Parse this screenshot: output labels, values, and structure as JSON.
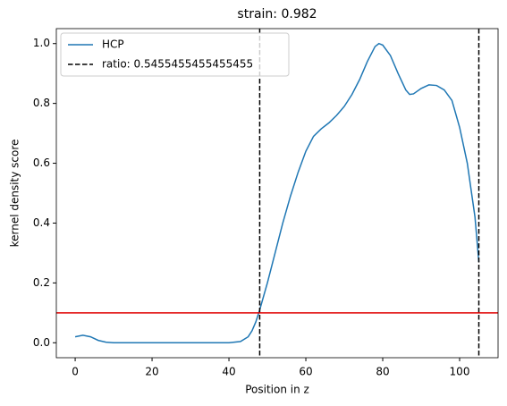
{
  "chart_data": {
    "type": "line",
    "title": "strain: 0.982",
    "xlabel": "Position in z",
    "ylabel": "kernel density score",
    "series": [
      {
        "name": "HCP",
        "color": "#1f77b4",
        "x": [
          0,
          2,
          4,
          6,
          8,
          10,
          20,
          30,
          40,
          43,
          45,
          46,
          47,
          48,
          50,
          52,
          54,
          56,
          58,
          60,
          62,
          64,
          66,
          68,
          70,
          72,
          74,
          76,
          78,
          79,
          80,
          82,
          84,
          86,
          87,
          88,
          90,
          92,
          94,
          96,
          98,
          100,
          102,
          104,
          105
        ],
        "values": [
          0.02,
          0.025,
          0.02,
          0.008,
          0.002,
          0,
          0,
          0,
          0,
          0.004,
          0.02,
          0.04,
          0.07,
          0.11,
          0.2,
          0.3,
          0.4,
          0.49,
          0.57,
          0.64,
          0.69,
          0.715,
          0.735,
          0.76,
          0.79,
          0.83,
          0.88,
          0.94,
          0.99,
          1.0,
          0.995,
          0.96,
          0.9,
          0.845,
          0.83,
          0.832,
          0.85,
          0.862,
          0.86,
          0.845,
          0.81,
          0.72,
          0.6,
          0.42,
          0.27
        ]
      }
    ],
    "vlines": {
      "name": "ratio: 0.5455455455455455",
      "color": "#000000",
      "values": [
        48,
        105
      ]
    },
    "hline": {
      "value": 0.1,
      "color": "#e00000"
    },
    "xlim": [
      -4.9,
      110
    ],
    "ylim": [
      -0.05,
      1.05
    ],
    "xticks": [
      0,
      20,
      40,
      60,
      80,
      100
    ],
    "yticks": [
      {
        "value": 0,
        "label": "0.0"
      },
      {
        "value": 0.2,
        "label": "0.2"
      },
      {
        "value": 0.4,
        "label": "0.4"
      },
      {
        "value": 0.6,
        "label": "0.6"
      },
      {
        "value": 0.8,
        "label": "0.8"
      },
      {
        "value": 1,
        "label": "1.0"
      }
    ],
    "legend": "upper left"
  }
}
